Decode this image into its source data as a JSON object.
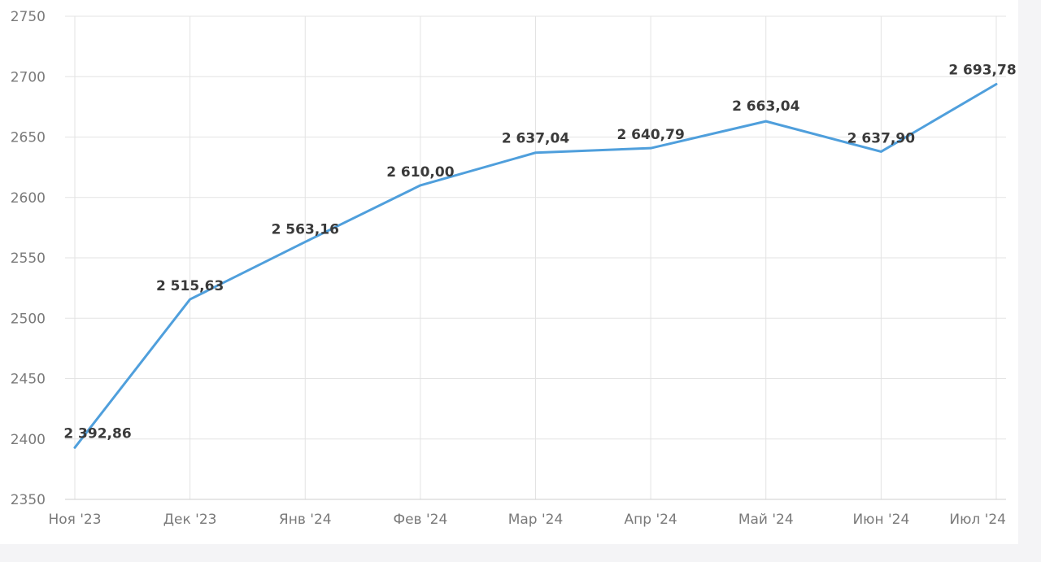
{
  "chart_data": {
    "type": "line",
    "categories": [
      "Ноя '23",
      "Дек '23",
      "Янв '24",
      "Фев '24",
      "Мар '24",
      "Апр '24",
      "Май '24",
      "Июн '24",
      "Июл '24"
    ],
    "series": [
      {
        "values": [
          2392.86,
          2515.63,
          2563.16,
          2610.0,
          2637.04,
          2640.79,
          2663.04,
          2637.9,
          2693.78
        ],
        "labels": [
          "2 392,86",
          "2 515,63",
          "2 563,16",
          "2 610,00",
          "2 637,04",
          "2 640,79",
          "2 663,04",
          "2 637,90",
          "2 693,78"
        ],
        "color": "#4f9fdc"
      }
    ],
    "ylim": [
      2350,
      2750
    ],
    "yticks": [
      "2350",
      "2400",
      "2450",
      "2500",
      "2550",
      "2600",
      "2650",
      "2700",
      "2750"
    ],
    "grid": true,
    "title": "",
    "xlabel": "",
    "ylabel": ""
  }
}
